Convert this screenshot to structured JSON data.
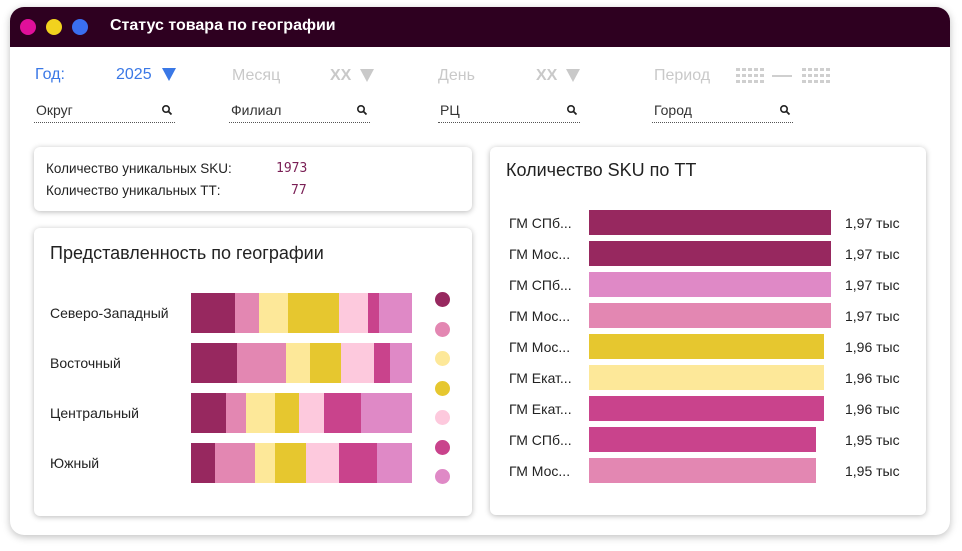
{
  "window": {
    "title": "Статус товара по географии",
    "colors": {
      "titlebar": "#2e0020",
      "dot_pink": "#e0109a",
      "dot_yellow": "#f1d21e",
      "dot_blue": "#3a6ef0"
    }
  },
  "filters": {
    "year_label": "Год:",
    "year_value": "2025",
    "month_label": "Месяц",
    "month_value": "XX",
    "day_label": "День",
    "day_value": "XX",
    "period_label": "Период",
    "active_color": "#3a78e6",
    "inactive_color": "#c9c9c9"
  },
  "search_fields": [
    {
      "label": "Округ"
    },
    {
      "label": "Филиал"
    },
    {
      "label": "РЦ"
    },
    {
      "label": "Город"
    }
  ],
  "stats": {
    "sku_label": "Количество уникальных SKU:",
    "sku_value": "1973",
    "tt_label": "Количество уникальных ТТ:",
    "tt_value": "77"
  },
  "geo_card": {
    "title": "Представленность по географии",
    "palette": [
      "#97285f",
      "#e387b2",
      "#fde899",
      "#e6c72f",
      "#fdc9dd",
      "#c9438c",
      "#df89c6"
    ],
    "regions": [
      {
        "name": "Северо-Западный",
        "segments": [
          {
            "color": "#97285f",
            "share": 0.2
          },
          {
            "color": "#e387b2",
            "share": 0.11
          },
          {
            "color": "#fde899",
            "share": 0.13
          },
          {
            "color": "#e6c72f",
            "share": 0.23
          },
          {
            "color": "#fdc9dd",
            "share": 0.13
          },
          {
            "color": "#c9438c",
            "share": 0.05
          },
          {
            "color": "#df89c6",
            "share": 0.15
          }
        ]
      },
      {
        "name": "Восточный",
        "segments": [
          {
            "color": "#97285f",
            "share": 0.21
          },
          {
            "color": "#e387b2",
            "share": 0.22
          },
          {
            "color": "#fde899",
            "share": 0.11
          },
          {
            "color": "#e6c72f",
            "share": 0.14
          },
          {
            "color": "#fdc9dd",
            "share": 0.15
          },
          {
            "color": "#c9438c",
            "share": 0.07
          },
          {
            "color": "#df89c6",
            "share": 0.1
          }
        ]
      },
      {
        "name": "Центральный",
        "segments": [
          {
            "color": "#97285f",
            "share": 0.16
          },
          {
            "color": "#e387b2",
            "share": 0.09
          },
          {
            "color": "#fde899",
            "share": 0.13
          },
          {
            "color": "#e6c72f",
            "share": 0.11
          },
          {
            "color": "#fdc9dd",
            "share": 0.11
          },
          {
            "color": "#c9438c",
            "share": 0.17
          },
          {
            "color": "#df89c6",
            "share": 0.23
          }
        ]
      },
      {
        "name": "Южный",
        "segments": [
          {
            "color": "#97285f",
            "share": 0.11
          },
          {
            "color": "#e387b2",
            "share": 0.18
          },
          {
            "color": "#fde899",
            "share": 0.09
          },
          {
            "color": "#e6c72f",
            "share": 0.14
          },
          {
            "color": "#fdc9dd",
            "share": 0.15
          },
          {
            "color": "#c9438c",
            "share": 0.17
          },
          {
            "color": "#df89c6",
            "share": 0.16
          }
        ]
      }
    ]
  },
  "tt_card": {
    "title": "Количество SKU по ТТ",
    "rows": [
      {
        "label": "ГМ СПб...",
        "value": 1.97,
        "text": "1,97 тыс",
        "color": "#97285f"
      },
      {
        "label": "ГМ Мос...",
        "value": 1.97,
        "text": "1,97 тыс",
        "color": "#97285f"
      },
      {
        "label": "ГМ СПб...",
        "value": 1.97,
        "text": "1,97 тыс",
        "color": "#df89c6"
      },
      {
        "label": "ГМ Мос...",
        "value": 1.97,
        "text": "1,97 тыс",
        "color": "#e387b2"
      },
      {
        "label": "ГМ Мос...",
        "value": 1.96,
        "text": "1,96 тыс",
        "color": "#e6c72f"
      },
      {
        "label": "ГМ Екат...",
        "value": 1.96,
        "text": "1,96 тыс",
        "color": "#fde899"
      },
      {
        "label": "ГМ Екат...",
        "value": 1.96,
        "text": "1,96 тыс",
        "color": "#c9438c"
      },
      {
        "label": "ГМ СПб...",
        "value": 1.95,
        "text": "1,95 тыс",
        "color": "#c9438c"
      },
      {
        "label": "ГМ Мос...",
        "value": 1.95,
        "text": "1,95 тыс",
        "color": "#e387b2"
      }
    ]
  }
}
